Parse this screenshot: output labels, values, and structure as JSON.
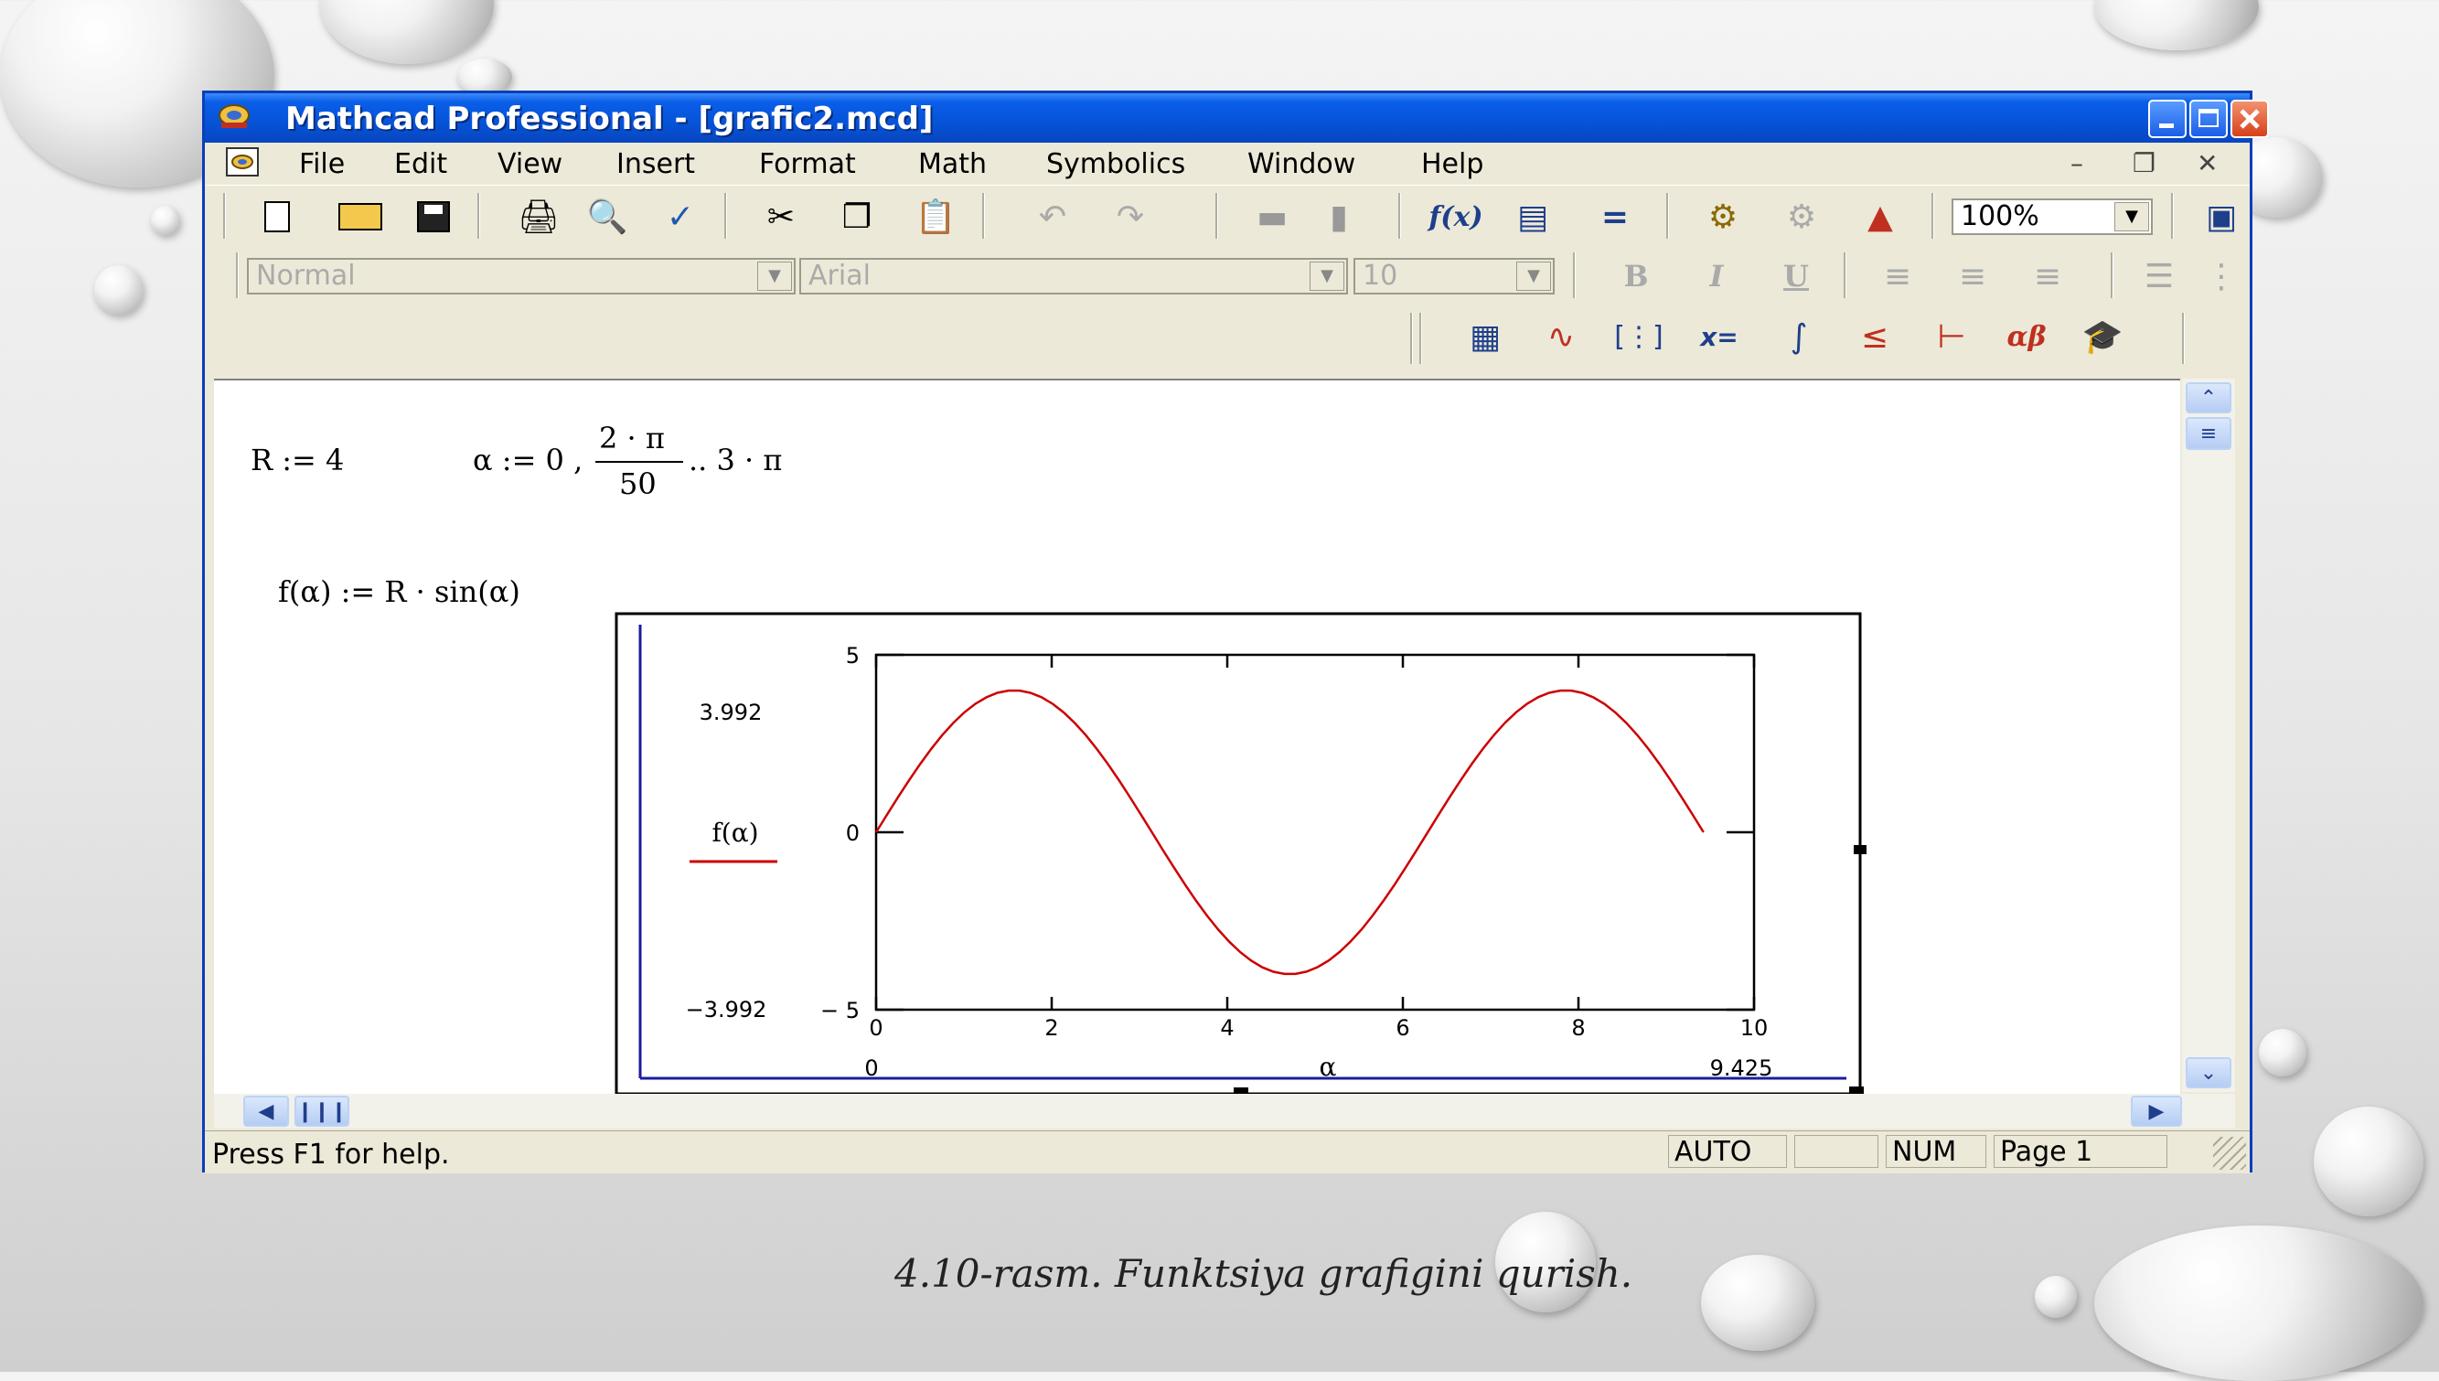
{
  "window": {
    "title": "Mathcad Professional - [grafic2.mcd]"
  },
  "menu": {
    "items": [
      "File",
      "Edit",
      "View",
      "Insert",
      "Format",
      "Math",
      "Symbolics",
      "Window",
      "Help"
    ]
  },
  "toolbar": {
    "zoom": "100%",
    "style": "Normal",
    "font": "Arial",
    "font_size": "10",
    "bold": "B",
    "italic": "I",
    "underline": "U"
  },
  "math_toolbar": {
    "icons": [
      "calculator-icon",
      "graph-icon",
      "matrix-icon",
      "evaluation-icon",
      "calculus-icon",
      "boolean-icon",
      "programming-icon",
      "greek-icon",
      "symbolic-icon"
    ]
  },
  "worksheet": {
    "expr_r": "R := 4",
    "expr_alpha_lhs": "α := 0 ,",
    "expr_alpha_num": "2 · π",
    "expr_alpha_den": "50",
    "expr_alpha_rhs": ".. 3 · π",
    "expr_f": "f(α) := R · sin(α)"
  },
  "status": {
    "help": "Press F1 for help.",
    "auto": "AUTO",
    "num": "NUM",
    "page": "Page 1"
  },
  "caption": "4.10-rasm. Funktsiya grafigini qurish.",
  "chart_data": {
    "type": "line",
    "title": "",
    "xlabel": "α",
    "ylabel": "f(α)",
    "xlim": [
      0,
      10
    ],
    "ylim": [
      -5,
      5
    ],
    "x_ticks": [
      "0",
      "2",
      "4",
      "6",
      "8",
      "10"
    ],
    "y_ticks": [
      "5",
      "0",
      "-5"
    ],
    "x_marker_min": "0",
    "x_marker_max": "9.425",
    "y_marker_max": "3.992",
    "y_marker_min": "-3.992",
    "series": [
      {
        "name": "f(α)",
        "color": "#cc0000",
        "function": "4*sin(x)",
        "x_start": 0,
        "x_end": 9.425,
        "x_step": 0.1257
      }
    ]
  }
}
